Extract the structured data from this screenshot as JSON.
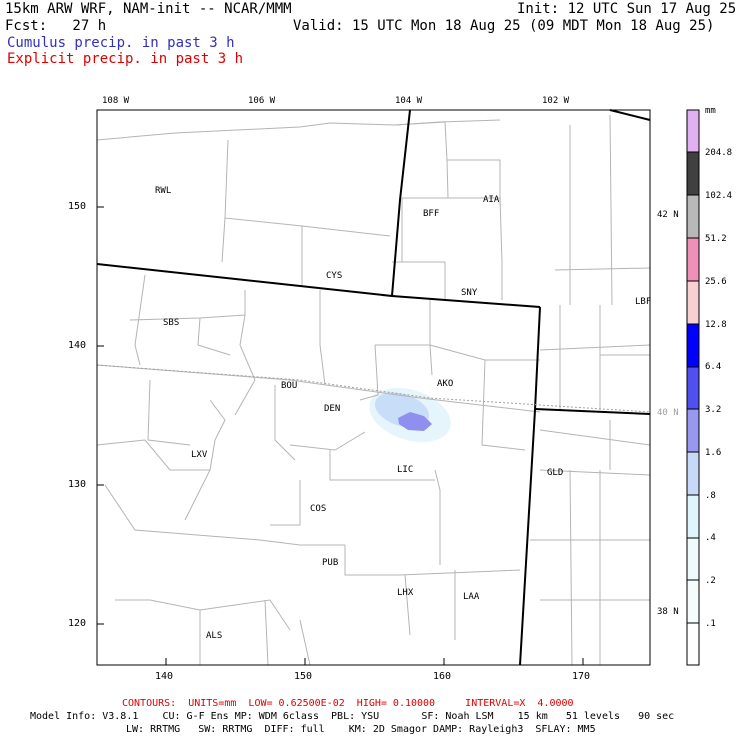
{
  "header": {
    "title": "15km ARW WRF, NAM-init -- NCAR/MMM",
    "init": "Init: 12 UTC Sun 17 Aug 25",
    "fcst": "Fcst:   27 h",
    "valid": "Valid: 15 UTC Mon 18 Aug 25 (09 MDT Mon 18 Aug 25)",
    "line_cumulus": "Cumulus precip. in past 3 h",
    "line_explicit": "Explicit precip. in past 3 h",
    "cumulus_color": "#3030c0",
    "explicit_color": "#e00000"
  },
  "map": {
    "top_lon_labels": [
      "108 W",
      "106 W",
      "104 W",
      "102 W"
    ],
    "right_lat_labels": [
      "42 N",
      "40 N",
      "38 N"
    ],
    "y_ticks": [
      "150",
      "140",
      "130",
      "120"
    ],
    "x_ticks": [
      "140",
      "150",
      "160",
      "170"
    ],
    "stations": [
      "RWL",
      "BFF",
      "AIA",
      "CYS",
      "SNY",
      "LBF",
      "SBS",
      "BOU",
      "AKO",
      "DEN",
      "LXV",
      "LIC",
      "GLD",
      "COS",
      "PUB",
      "LHX",
      "LAA",
      "ALS"
    ]
  },
  "colorbar": {
    "unit": "mm",
    "labels": [
      "204.8",
      "102.4",
      "51.2",
      "25.6",
      "12.8",
      "6.4",
      "3.2",
      "1.6",
      ".8",
      ".4",
      ".2",
      ".1"
    ],
    "colors": [
      "#e0b0f0",
      "#404040",
      "#b8b8b8",
      "#f090b8",
      "#f8d0d0",
      "#0000ff",
      "#5050f0",
      "#9898f0",
      "#c8d8f8",
      "#e0f4fc",
      "#eefafc",
      "#f6fcfc",
      "#ffffff"
    ]
  },
  "footer": {
    "contours": "CONTOURS:  UNITS=mm  LOW= 0.62500E-02  HIGH= 0.10000     INTERVAL=X  4.0000",
    "model_info": "Model Info: V3.8.1    CU: G-F Ens MP: WDM 6class  PBL: YSU       SF: Noah LSM    15 km   51 levels   90 sec",
    "model_info2": "LW: RRTMG   SW: RRTMG  DIFF: full    KM: 2D Smagor DAMP: Rayleigh3  SFLAY: MM5",
    "contours_color": "#e00000"
  }
}
